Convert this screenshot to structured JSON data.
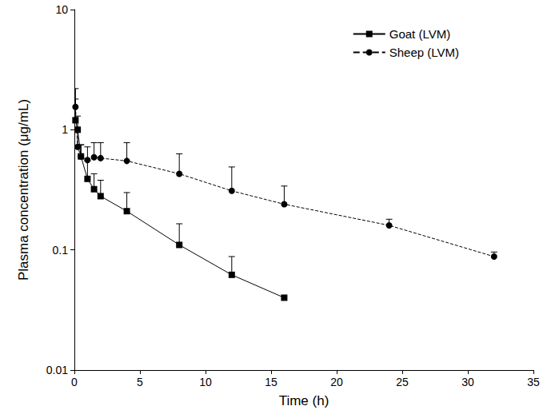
{
  "chart_data": {
    "type": "line",
    "x_label": "Time (h)",
    "y_label": "Plasma concentration (μg/mL)",
    "log": "y",
    "grid": false,
    "legend": "upper right",
    "xlim": [
      0,
      35
    ],
    "xticks": [
      0,
      5,
      10,
      15,
      20,
      25,
      30,
      35
    ],
    "ylim": [
      0.01,
      10
    ],
    "yticks": [
      0.01,
      0.1,
      1,
      10
    ],
    "series": [
      {
        "name": "Goat (LVM)",
        "color": "#000000",
        "marker": "square",
        "line_style": "solid",
        "x": [
          0.083,
          0.25,
          0.5,
          1,
          1.5,
          2,
          4,
          8,
          12,
          16
        ],
        "values": [
          1.2,
          1.0,
          0.6,
          0.39,
          0.32,
          0.28,
          0.21,
          0.11,
          0.062,
          0.04
        ],
        "errors": [
          0.6,
          0.3,
          0.15,
          0.16,
          0.11,
          0.1,
          0.09,
          0.055,
          0.026,
          null
        ]
      },
      {
        "name": "Sheep (LVM)",
        "color": "#000000",
        "marker": "circle",
        "line_style": "dashed",
        "x": [
          0.083,
          0.25,
          0.5,
          1,
          1.5,
          2,
          4,
          8,
          12,
          16,
          24,
          32
        ],
        "values": [
          1.55,
          0.72,
          0.6,
          0.56,
          0.59,
          0.58,
          0.55,
          0.43,
          0.31,
          0.24,
          0.16,
          0.088
        ],
        "errors": [
          0.65,
          0.28,
          0.15,
          0.16,
          0.19,
          0.2,
          0.23,
          0.2,
          0.18,
          0.1,
          0.02,
          0.008
        ]
      }
    ]
  }
}
